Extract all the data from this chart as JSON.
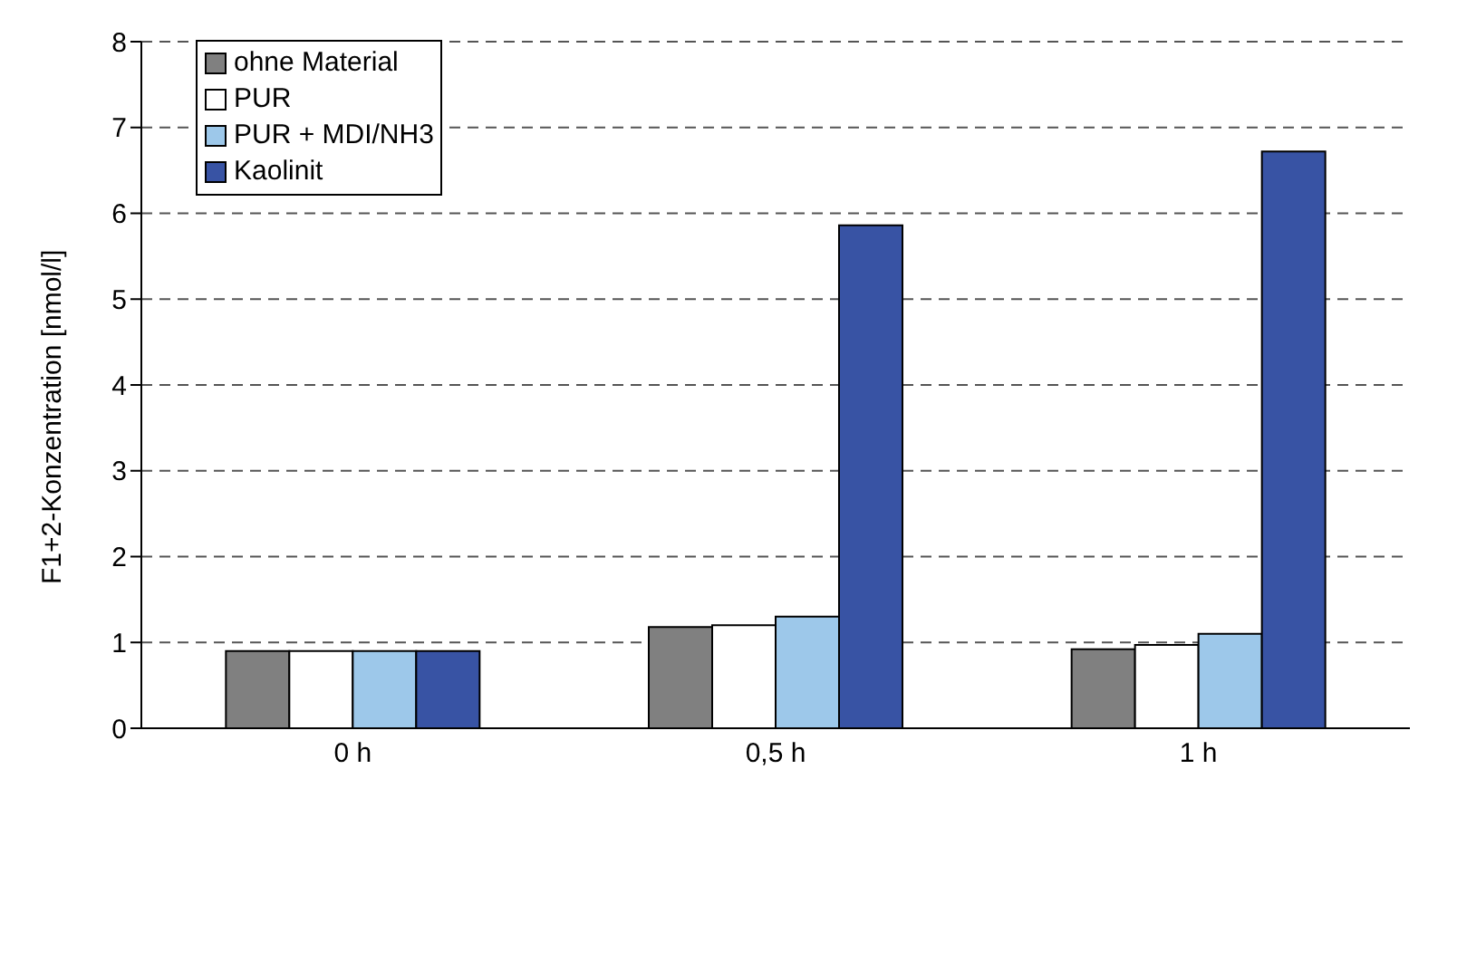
{
  "chart_data": {
    "type": "bar",
    "ylabel": "F1+2-Konzentration [nmol/l]",
    "categories": [
      "0 h",
      "0,5 h",
      "1 h"
    ],
    "series": [
      {
        "name": "ohne Material",
        "color": "#808080",
        "values": [
          0.9,
          1.18,
          0.92
        ]
      },
      {
        "name": "PUR",
        "color": "#ffffff",
        "values": [
          0.9,
          1.2,
          0.97
        ]
      },
      {
        "name": "PUR + MDI/NH3",
        "color": "#9dc8ea",
        "values": [
          0.9,
          1.3,
          1.1
        ]
      },
      {
        "name": "Kaolinit",
        "color": "#3853a4",
        "values": [
          0.9,
          5.86,
          6.72
        ]
      }
    ],
    "ylim": [
      0,
      8
    ],
    "yticks": [
      0,
      1,
      2,
      3,
      4,
      5,
      6,
      7,
      8
    ],
    "grid": "y",
    "legend": "top left"
  }
}
